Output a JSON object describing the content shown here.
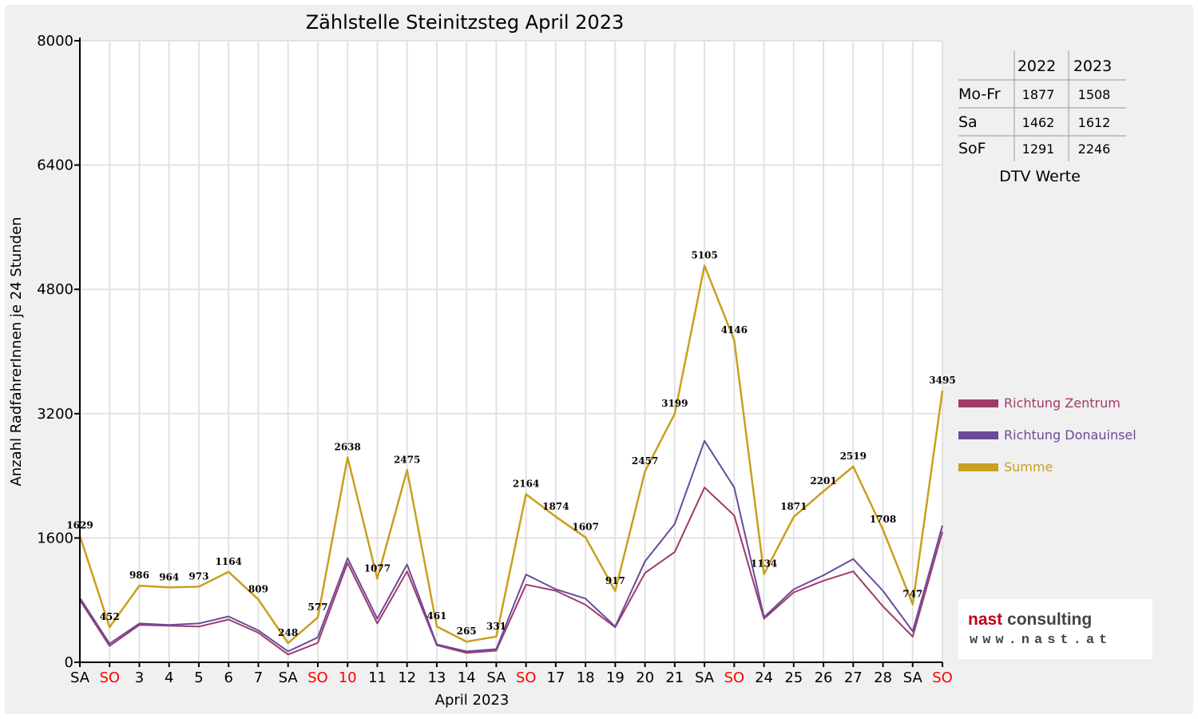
{
  "chart_data": {
    "type": "line",
    "title": "Zählstelle Steinitzsteg April 2023",
    "xlabel": "April 2023",
    "ylabel": "Anzahl RadfahrerInnen je 24 Stunden",
    "ylim": [
      0,
      8000
    ],
    "yticks": [
      "0",
      "1600",
      "3200",
      "4800",
      "6400",
      "8000"
    ],
    "categories": [
      "SA",
      "SO",
      "3",
      "4",
      "5",
      "6",
      "7",
      "SA",
      "SO",
      "10",
      "11",
      "12",
      "13",
      "14",
      "SA",
      "SO",
      "17",
      "18",
      "19",
      "20",
      "21",
      "SA",
      "SO",
      "24",
      "25",
      "26",
      "27",
      "28",
      "SA",
      "SO"
    ],
    "red_categories": [
      1,
      8,
      9,
      15,
      22,
      29
    ],
    "grid": true,
    "legend_position": "right",
    "series": [
      {
        "name": "Richtung Zentrum",
        "color": "#a03a6a",
        "values": [
          800,
          210,
          480,
          470,
          460,
          550,
          380,
          100,
          250,
          1280,
          500,
          1170,
          220,
          120,
          150,
          1000,
          920,
          740,
          450,
          1150,
          1420,
          2250,
          1890,
          560,
          900,
          1050,
          1170,
          720,
          330,
          1680
        ]
      },
      {
        "name": "Richtung Donauinsel",
        "color": "#6a4a9a",
        "values": [
          830,
          240,
          500,
          480,
          500,
          590,
          410,
          140,
          320,
          1340,
          560,
          1260,
          230,
          140,
          170,
          1130,
          940,
          820,
          460,
          1300,
          1780,
          2850,
          2250,
          580,
          940,
          1120,
          1330,
          920,
          400,
          1760
        ]
      },
      {
        "name": "Summe",
        "color": "#c8a020",
        "values": [
          1629,
          452,
          986,
          964,
          973,
          1164,
          809,
          248,
          577,
          2638,
          1077,
          2475,
          461,
          265,
          331,
          2164,
          1874,
          1607,
          917,
          2457,
          3199,
          5105,
          4146,
          1134,
          1871,
          2201,
          2519,
          1708,
          747,
          3495
        ],
        "labels": [
          "1629",
          "452",
          "986",
          "964",
          "973",
          "1164",
          "809",
          "248",
          "577",
          "2638",
          "1077",
          "2475",
          "461",
          "265",
          "331",
          "2164",
          "1874",
          "1607",
          "917",
          "2457",
          "3199",
          "5105",
          "4146",
          "1134",
          "1871",
          "2201",
          "2519",
          "1708",
          "747",
          "3495"
        ]
      }
    ]
  },
  "dtv_table": {
    "years": [
      "2022",
      "2023"
    ],
    "rows": [
      {
        "label": "Mo-Fr",
        "v2022": "1877",
        "v2023": "1508"
      },
      {
        "label": "Sa",
        "v2022": "1462",
        "v2023": "1612"
      },
      {
        "label": "SoF",
        "v2022": "1291",
        "v2023": "2246"
      }
    ],
    "caption": "DTV Werte"
  },
  "logo": {
    "brand_part1": "nast",
    "brand_part2": "consulting",
    "url": "www.nast.at",
    "brand_color": "#c0001a"
  }
}
